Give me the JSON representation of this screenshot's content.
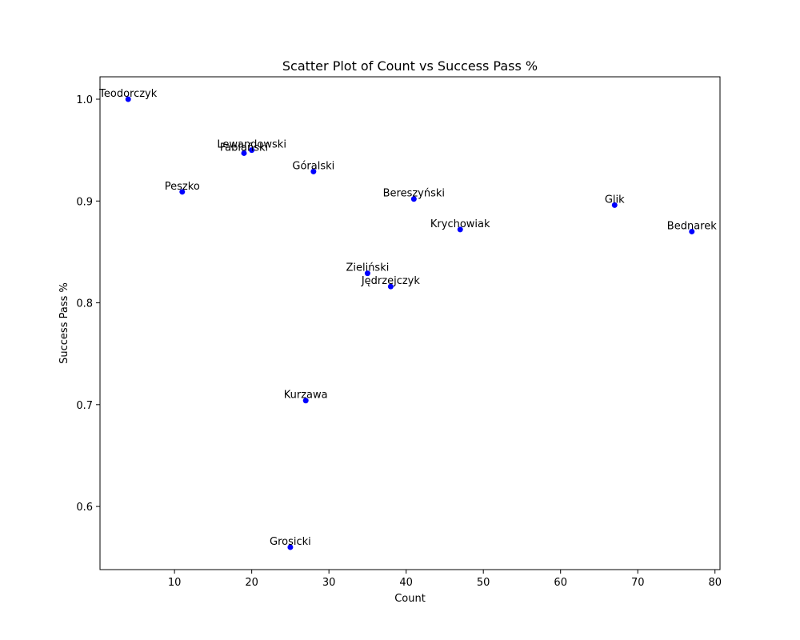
{
  "chart_data": {
    "type": "scatter",
    "title": "Scatter Plot of Count vs Success Pass %",
    "xlabel": "Count",
    "ylabel": "Success Pass %",
    "xlim": [
      0.35,
      80.65
    ],
    "ylim": [
      0.538,
      1.022
    ],
    "xticks": [
      10,
      20,
      30,
      40,
      50,
      60,
      70,
      80
    ],
    "yticks": [
      0.6,
      0.7,
      0.8,
      0.9,
      1.0
    ],
    "ytick_labels": [
      "0.6",
      "0.7",
      "0.8",
      "0.9",
      "1.0"
    ],
    "grid": false,
    "marker_color": "#0000ff",
    "points": [
      {
        "name": "Teodorczyk",
        "x": 4,
        "y": 1.0
      },
      {
        "name": "Lewandowski",
        "x": 20,
        "y": 0.95
      },
      {
        "name": "Fabiański",
        "x": 19,
        "y": 0.947
      },
      {
        "name": "Góralski",
        "x": 28,
        "y": 0.929
      },
      {
        "name": "Peszko",
        "x": 11,
        "y": 0.909
      },
      {
        "name": "Bereszyński",
        "x": 41,
        "y": 0.902
      },
      {
        "name": "Glik",
        "x": 67,
        "y": 0.896
      },
      {
        "name": "Krychowiak",
        "x": 47,
        "y": 0.872
      },
      {
        "name": "Bednarek",
        "x": 77,
        "y": 0.87
      },
      {
        "name": "Zieliński",
        "x": 35,
        "y": 0.829
      },
      {
        "name": "Jędrzejczyk",
        "x": 38,
        "y": 0.816
      },
      {
        "name": "Kurzawa",
        "x": 27,
        "y": 0.704
      },
      {
        "name": "Grosicki",
        "x": 25,
        "y": 0.56
      }
    ]
  }
}
